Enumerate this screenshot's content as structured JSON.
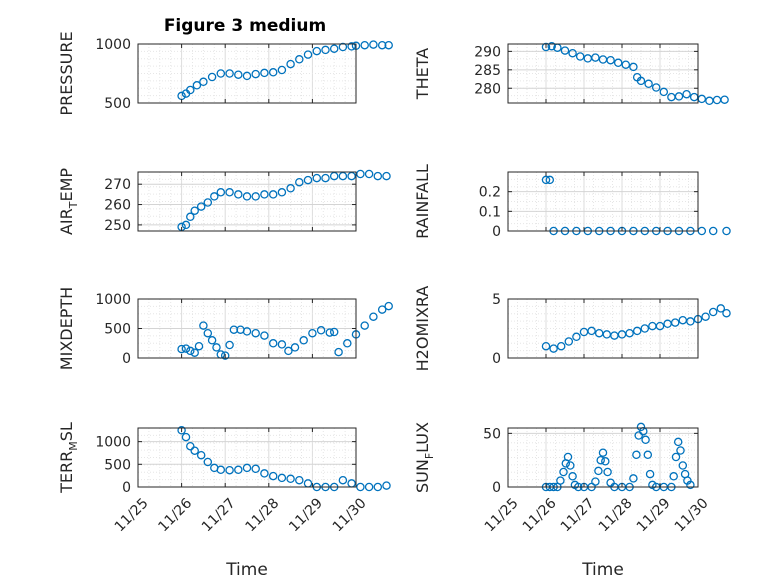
{
  "chart_data": [
    {
      "type": "scatter",
      "title": "Figure 3 medium",
      "ylabel": "PRESSURE",
      "ylabel_sub": "",
      "xlabel": "",
      "show_xticklabels": false,
      "ylim": [
        500,
        1000
      ],
      "yticks": [
        500,
        1000
      ],
      "ytick_labels": [
        "500",
        "1000"
      ],
      "grid": true,
      "series": [
        {
          "points": [
            [
              1.0,
              560
            ],
            [
              1.1,
              580
            ],
            [
              1.2,
              610
            ],
            [
              1.35,
              650
            ],
            [
              1.5,
              680
            ],
            [
              1.7,
              720
            ],
            [
              1.9,
              750
            ],
            [
              2.1,
              750
            ],
            [
              2.3,
              740
            ],
            [
              2.5,
              730
            ],
            [
              2.7,
              745
            ],
            [
              2.9,
              755
            ],
            [
              3.1,
              760
            ],
            [
              3.3,
              780
            ],
            [
              3.5,
              830
            ],
            [
              3.7,
              870
            ],
            [
              3.9,
              910
            ],
            [
              4.1,
              940
            ],
            [
              4.3,
              950
            ],
            [
              4.5,
              960
            ],
            [
              4.7,
              975
            ],
            [
              4.9,
              980
            ],
            [
              5.0,
              985
            ],
            [
              5.2,
              990
            ],
            [
              5.4,
              995
            ],
            [
              5.6,
              990
            ],
            [
              5.75,
              990
            ]
          ]
        }
      ]
    },
    {
      "type": "scatter",
      "title": "",
      "ylabel": "THETA",
      "ylabel_sub": "",
      "xlabel": "",
      "show_xticklabels": false,
      "ylim": [
        276,
        292
      ],
      "yticks": [
        280,
        285,
        290
      ],
      "ytick_labels": [
        "280",
        "285",
        "290"
      ],
      "grid": true,
      "series": [
        {
          "points": [
            [
              1.0,
              291.2
            ],
            [
              1.15,
              291.4
            ],
            [
              1.3,
              291.0
            ],
            [
              1.5,
              290.2
            ],
            [
              1.7,
              289.5
            ],
            [
              1.9,
              288.6
            ],
            [
              2.1,
              288.1
            ],
            [
              2.3,
              288.3
            ],
            [
              2.5,
              287.8
            ],
            [
              2.7,
              287.6
            ],
            [
              2.9,
              286.9
            ],
            [
              3.1,
              286.4
            ],
            [
              3.3,
              285.8
            ],
            [
              3.4,
              283.0
            ],
            [
              3.5,
              282.0
            ],
            [
              3.7,
              281.2
            ],
            [
              3.9,
              280.2
            ],
            [
              4.1,
              279.0
            ],
            [
              4.3,
              277.6
            ],
            [
              4.5,
              277.8
            ],
            [
              4.7,
              278.4
            ],
            [
              4.9,
              277.6
            ],
            [
              5.1,
              277.1
            ],
            [
              5.3,
              276.6
            ],
            [
              5.5,
              276.8
            ],
            [
              5.7,
              276.9
            ]
          ]
        }
      ]
    },
    {
      "type": "scatter",
      "title": "",
      "ylabel": "AIR",
      "ylabel_sub": "T",
      "ylabel_suffix": "EMP",
      "xlabel": "",
      "show_xticklabels": false,
      "ylim": [
        247,
        276
      ],
      "yticks": [
        250,
        260,
        270
      ],
      "ytick_labels": [
        "250",
        "260",
        "270"
      ],
      "grid": true,
      "series": [
        {
          "points": [
            [
              1.0,
              249
            ],
            [
              1.1,
              250
            ],
            [
              1.2,
              254
            ],
            [
              1.3,
              257
            ],
            [
              1.45,
              259
            ],
            [
              1.6,
              261
            ],
            [
              1.75,
              264
            ],
            [
              1.9,
              266
            ],
            [
              2.1,
              266
            ],
            [
              2.3,
              265
            ],
            [
              2.5,
              264
            ],
            [
              2.7,
              264
            ],
            [
              2.9,
              265
            ],
            [
              3.1,
              265
            ],
            [
              3.3,
              266
            ],
            [
              3.5,
              268
            ],
            [
              3.7,
              271
            ],
            [
              3.9,
              272
            ],
            [
              4.1,
              273
            ],
            [
              4.3,
              273
            ],
            [
              4.5,
              274
            ],
            [
              4.7,
              274
            ],
            [
              4.9,
              274
            ],
            [
              5.1,
              275
            ],
            [
              5.3,
              275
            ],
            [
              5.5,
              274
            ],
            [
              5.7,
              274
            ]
          ]
        }
      ]
    },
    {
      "type": "scatter",
      "title": "",
      "ylabel": "RAINFALL",
      "ylabel_sub": "",
      "xlabel": "",
      "show_xticklabels": false,
      "ylim": [
        0,
        0.3
      ],
      "yticks": [
        0,
        0.1,
        0.2
      ],
      "ytick_labels": [
        "0",
        "0.1",
        "0.2"
      ],
      "grid": true,
      "series": [
        {
          "points": [
            [
              1.0,
              0.26
            ],
            [
              1.1,
              0.26
            ],
            [
              1.2,
              0
            ],
            [
              1.5,
              0
            ],
            [
              1.8,
              0
            ],
            [
              2.1,
              0
            ],
            [
              2.4,
              0
            ],
            [
              2.7,
              0
            ],
            [
              3.0,
              0
            ],
            [
              3.3,
              0
            ],
            [
              3.6,
              0
            ],
            [
              3.9,
              0
            ],
            [
              4.2,
              0
            ],
            [
              4.5,
              0
            ],
            [
              4.8,
              0
            ],
            [
              5.1,
              0
            ],
            [
              5.4,
              0
            ],
            [
              5.75,
              0
            ]
          ]
        }
      ]
    },
    {
      "type": "scatter",
      "title": "",
      "ylabel": "MIXDEPTH",
      "ylabel_sub": "",
      "xlabel": "",
      "show_xticklabels": false,
      "ylim": [
        0,
        1000
      ],
      "yticks": [
        0,
        500,
        1000
      ],
      "ytick_labels": [
        "0",
        "500",
        "1000"
      ],
      "grid": true,
      "series": [
        {
          "points": [
            [
              1.0,
              150
            ],
            [
              1.1,
              160
            ],
            [
              1.2,
              120
            ],
            [
              1.3,
              90
            ],
            [
              1.4,
              200
            ],
            [
              1.5,
              550
            ],
            [
              1.6,
              420
            ],
            [
              1.7,
              300
            ],
            [
              1.8,
              180
            ],
            [
              1.9,
              60
            ],
            [
              2.0,
              40
            ],
            [
              2.1,
              220
            ],
            [
              2.2,
              480
            ],
            [
              2.35,
              480
            ],
            [
              2.5,
              450
            ],
            [
              2.7,
              420
            ],
            [
              2.9,
              380
            ],
            [
              3.1,
              250
            ],
            [
              3.3,
              230
            ],
            [
              3.45,
              120
            ],
            [
              3.6,
              180
            ],
            [
              3.8,
              300
            ],
            [
              4.0,
              420
            ],
            [
              4.2,
              470
            ],
            [
              4.4,
              430
            ],
            [
              4.5,
              440
            ],
            [
              4.6,
              100
            ],
            [
              4.8,
              250
            ],
            [
              5.0,
              400
            ],
            [
              5.2,
              550
            ],
            [
              5.4,
              700
            ],
            [
              5.6,
              820
            ],
            [
              5.75,
              880
            ]
          ]
        }
      ]
    },
    {
      "type": "scatter",
      "title": "",
      "ylabel": "H2OMIXRA",
      "ylabel_sub": "",
      "xlabel": "",
      "show_xticklabels": false,
      "ylim": [
        0,
        5
      ],
      "yticks": [
        0,
        5
      ],
      "ytick_labels": [
        "0",
        "5"
      ],
      "grid": true,
      "series": [
        {
          "points": [
            [
              1.0,
              1.0
            ],
            [
              1.2,
              0.8
            ],
            [
              1.4,
              1.0
            ],
            [
              1.6,
              1.4
            ],
            [
              1.8,
              1.8
            ],
            [
              2.0,
              2.2
            ],
            [
              2.2,
              2.3
            ],
            [
              2.4,
              2.1
            ],
            [
              2.6,
              2.0
            ],
            [
              2.8,
              1.9
            ],
            [
              3.0,
              2.0
            ],
            [
              3.2,
              2.1
            ],
            [
              3.4,
              2.3
            ],
            [
              3.6,
              2.5
            ],
            [
              3.8,
              2.7
            ],
            [
              4.0,
              2.7
            ],
            [
              4.2,
              2.9
            ],
            [
              4.4,
              3.0
            ],
            [
              4.6,
              3.2
            ],
            [
              4.8,
              3.1
            ],
            [
              5.0,
              3.3
            ],
            [
              5.2,
              3.5
            ],
            [
              5.4,
              3.9
            ],
            [
              5.6,
              4.2
            ],
            [
              5.75,
              3.8
            ]
          ]
        }
      ]
    },
    {
      "type": "scatter",
      "title": "",
      "ylabel": "TERR",
      "ylabel_sub": "M",
      "ylabel_suffix": "SL",
      "xlabel": "Time",
      "show_xticklabels": true,
      "xticks": [
        0,
        1,
        2,
        3,
        4,
        5
      ],
      "xtick_labels": [
        "11/25",
        "11/26",
        "11/27",
        "11/28",
        "11/29",
        "11/30"
      ],
      "ylim": [
        0,
        1300
      ],
      "yticks": [
        0,
        500,
        1000
      ],
      "ytick_labels": [
        "0",
        "500",
        "1000"
      ],
      "grid": true,
      "series": [
        {
          "points": [
            [
              1.0,
              1250
            ],
            [
              1.1,
              1100
            ],
            [
              1.2,
              900
            ],
            [
              1.3,
              800
            ],
            [
              1.45,
              700
            ],
            [
              1.6,
              550
            ],
            [
              1.75,
              420
            ],
            [
              1.9,
              380
            ],
            [
              2.1,
              370
            ],
            [
              2.3,
              380
            ],
            [
              2.5,
              420
            ],
            [
              2.7,
              400
            ],
            [
              2.9,
              300
            ],
            [
              3.1,
              240
            ],
            [
              3.3,
              200
            ],
            [
              3.5,
              180
            ],
            [
              3.7,
              150
            ],
            [
              3.9,
              80
            ],
            [
              4.1,
              0
            ],
            [
              4.3,
              0
            ],
            [
              4.5,
              0
            ],
            [
              4.7,
              150
            ],
            [
              4.9,
              80
            ],
            [
              5.1,
              0
            ],
            [
              5.3,
              0
            ],
            [
              5.5,
              0
            ],
            [
              5.7,
              30
            ]
          ]
        }
      ]
    },
    {
      "type": "scatter",
      "title": "",
      "ylabel": "SUN",
      "ylabel_sub": "F",
      "ylabel_suffix": "LUX",
      "xlabel": "Time",
      "show_xticklabels": true,
      "xticks": [
        0,
        1,
        2,
        3,
        4,
        5
      ],
      "xtick_labels": [
        "11/25",
        "11/26",
        "11/27",
        "11/28",
        "11/29",
        "11/30"
      ],
      "ylim": [
        0,
        55
      ],
      "yticks": [
        0,
        50
      ],
      "ytick_labels": [
        "0",
        "50"
      ],
      "grid": true,
      "series": [
        {
          "points": [
            [
              1.0,
              0
            ],
            [
              1.1,
              0
            ],
            [
              1.2,
              0
            ],
            [
              1.3,
              0
            ],
            [
              1.38,
              6
            ],
            [
              1.46,
              14
            ],
            [
              1.52,
              22
            ],
            [
              1.58,
              28
            ],
            [
              1.64,
              20
            ],
            [
              1.7,
              10
            ],
            [
              1.76,
              2
            ],
            [
              1.85,
              0
            ],
            [
              2.0,
              0
            ],
            [
              2.2,
              0
            ],
            [
              2.3,
              5
            ],
            [
              2.38,
              15
            ],
            [
              2.44,
              25
            ],
            [
              2.5,
              32
            ],
            [
              2.56,
              24
            ],
            [
              2.62,
              14
            ],
            [
              2.7,
              4
            ],
            [
              2.8,
              0
            ],
            [
              3.0,
              0
            ],
            [
              3.2,
              0
            ],
            [
              3.3,
              8
            ],
            [
              3.38,
              30
            ],
            [
              3.44,
              48
            ],
            [
              3.5,
              56
            ],
            [
              3.56,
              52
            ],
            [
              3.62,
              44
            ],
            [
              3.68,
              30
            ],
            [
              3.74,
              12
            ],
            [
              3.8,
              2
            ],
            [
              3.9,
              0
            ],
            [
              4.1,
              0
            ],
            [
              4.3,
              0
            ],
            [
              4.36,
              10
            ],
            [
              4.42,
              28
            ],
            [
              4.48,
              42
            ],
            [
              4.54,
              34
            ],
            [
              4.6,
              20
            ],
            [
              4.66,
              12
            ],
            [
              4.72,
              6
            ],
            [
              4.8,
              2
            ]
          ]
        }
      ]
    }
  ]
}
